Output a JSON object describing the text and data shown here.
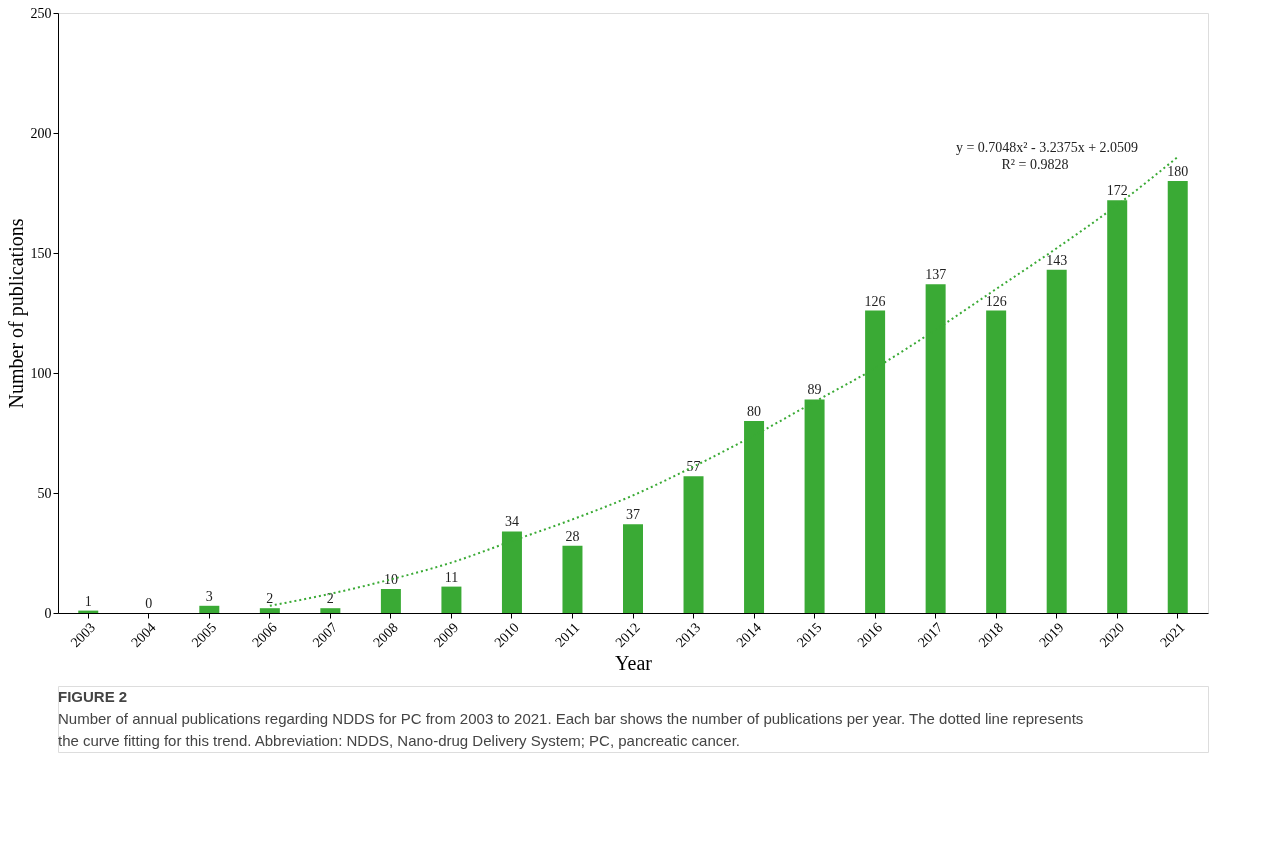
{
  "chart_data": {
    "type": "bar",
    "xlabel": "Year",
    "ylabel": "Number of publications",
    "categories": [
      "2003",
      "2004",
      "2005",
      "2006",
      "2007",
      "2008",
      "2009",
      "2010",
      "2011",
      "2012",
      "2013",
      "2014",
      "2015",
      "2016",
      "2017",
      "2018",
      "2019",
      "2020",
      "2021"
    ],
    "series": [
      {
        "color": "#3aaa35",
        "values": [
          1,
          0,
          3,
          2,
          2,
          10,
          11,
          34,
          28,
          37,
          57,
          80,
          89,
          126,
          137,
          126,
          143,
          172,
          180
        ],
        "value_labels": [
          "1",
          "0",
          "3",
          "2",
          "2",
          "10",
          "11",
          "34",
          "28",
          "37",
          "57",
          "80",
          "89",
          "126",
          "137",
          "126",
          "143",
          "172",
          "180"
        ]
      },
      {
        "type": "line",
        "color": "#3aaa35",
        "line_style": "dotted",
        "values": [
          null,
          null,
          null,
          3,
          8,
          14,
          21,
          30,
          39,
          49,
          61,
          74,
          88,
          102,
          118,
          135,
          152,
          170,
          190
        ]
      }
    ],
    "ylim": [
      0,
      250
    ],
    "yticks": [
      0,
      50,
      100,
      150,
      200,
      250
    ],
    "grid": false,
    "annotations": [
      "y = 0.7048x² - 3.2375x + 2.0509",
      "R² = 0.9828",
      "FIGURE 2",
      "Number of annual publications regarding NDDS for PC from 2003 to 2021. Each bar shows the number of publications per year. The dotted line represents the curve fitting for this trend. Abbreviation: NDDS, Nano-drug Delivery System; PC, pancreatic cancer."
    ]
  }
}
